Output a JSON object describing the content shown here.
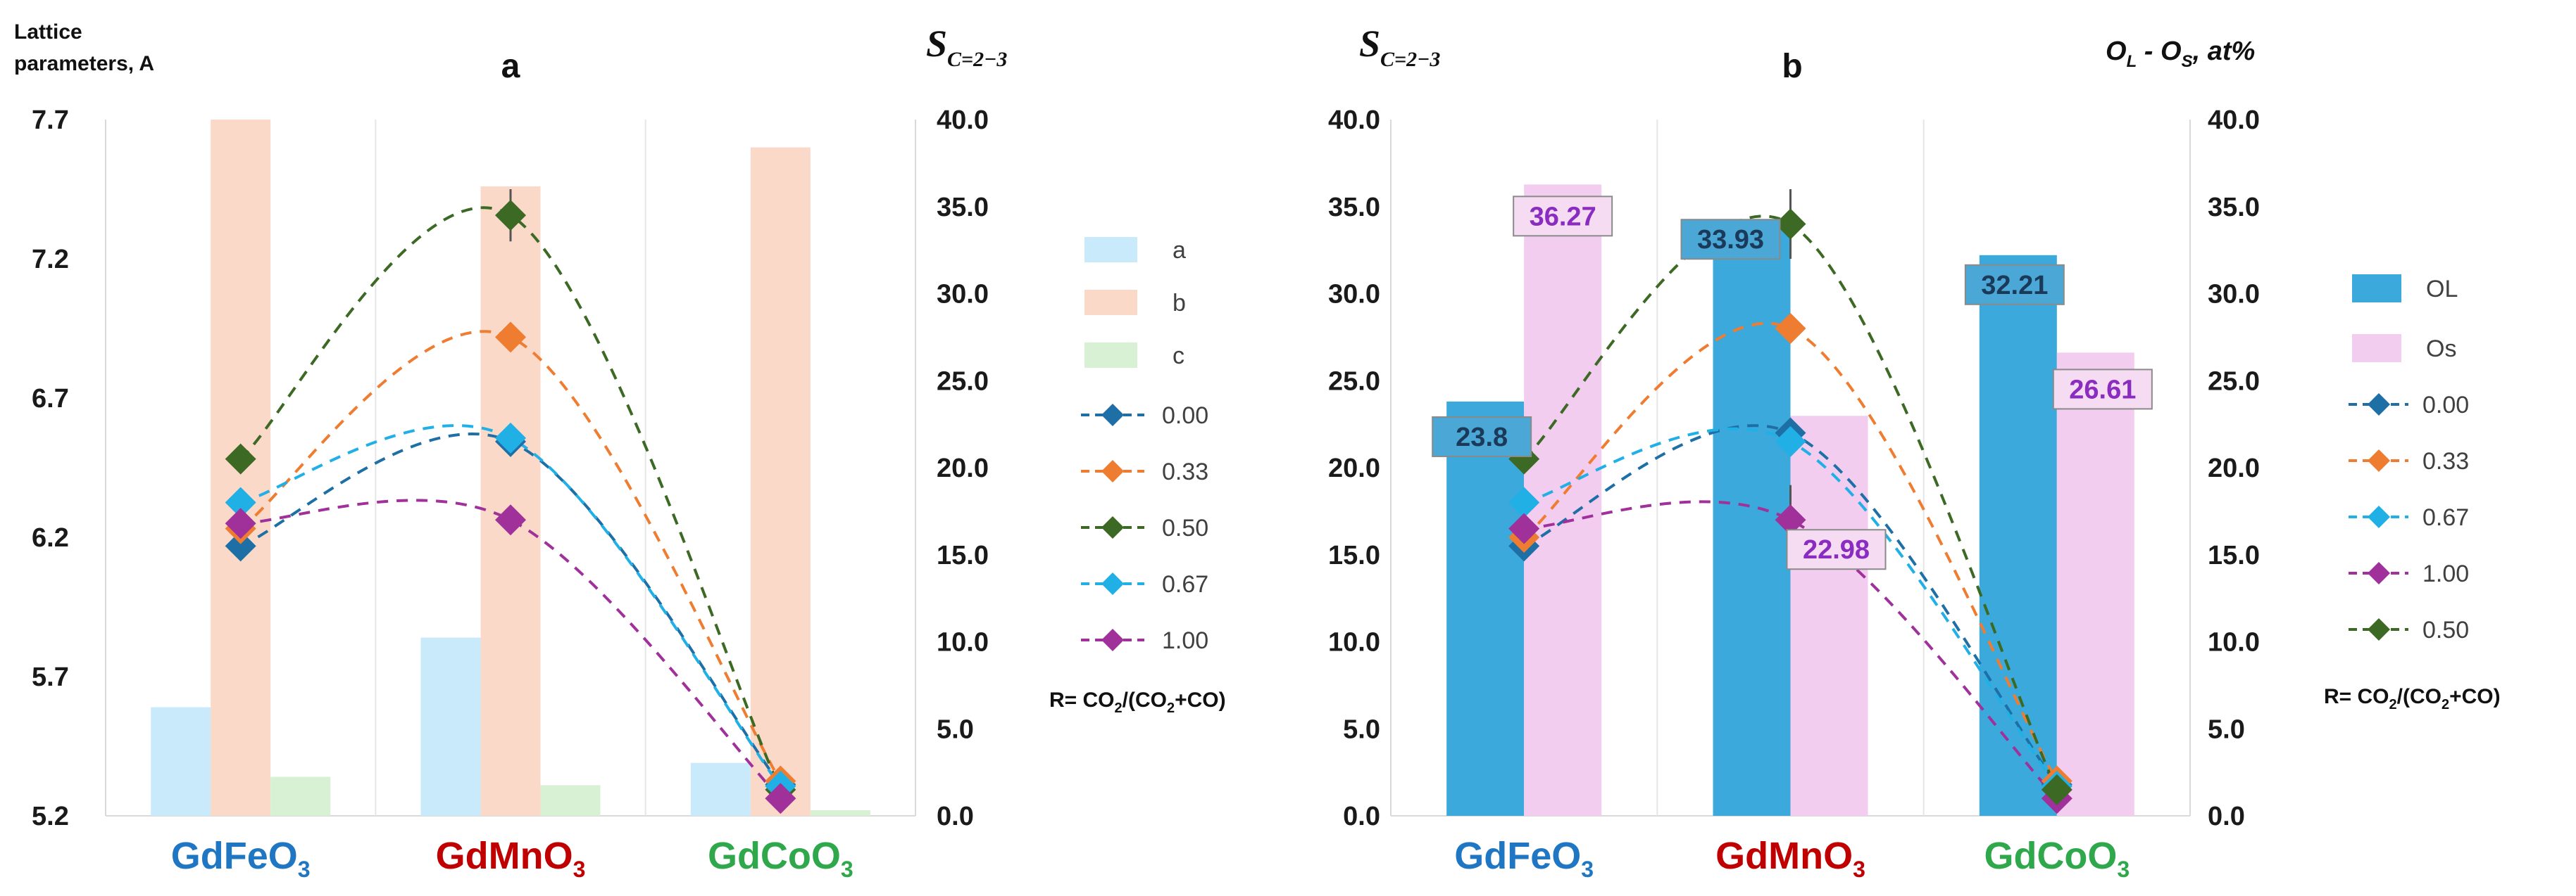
{
  "chart_data": [
    {
      "panel": "a",
      "type": "bar+line",
      "title": "a",
      "left_axis_label_line1": "Lattice",
      "left_axis_label_line2": "parameters, A",
      "right_axis_label": "S",
      "right_axis_label_sub": "C=2−3",
      "categories": [
        "GdFeO",
        "GdMnO",
        "GdCoO"
      ],
      "category_subscript": "3",
      "category_colors": [
        "#1f77c4",
        "#c00000",
        "#2ea84b"
      ],
      "left_ylim": [
        5.2,
        7.7
      ],
      "left_ticks": [
        "7.7",
        "7.2",
        "6.7",
        "6.2",
        "5.7",
        "5.2"
      ],
      "left_tick_values": [
        7.7,
        7.2,
        6.7,
        6.2,
        5.7,
        5.2
      ],
      "right_ylim": [
        0,
        40
      ],
      "right_ticks": [
        "40.0",
        "35.0",
        "30.0",
        "25.0",
        "20.0",
        "15.0",
        "10.0",
        "5.0",
        "0.0"
      ],
      "right_tick_values": [
        40,
        35,
        30,
        25,
        20,
        15,
        10,
        5,
        0
      ],
      "bar_series": [
        {
          "name": "a",
          "color": "#c9eafb",
          "values": [
            5.59,
            5.84,
            5.39
          ]
        },
        {
          "name": "b",
          "color": "#fbd9c9",
          "values": [
            7.7,
            7.46,
            7.6
          ]
        },
        {
          "name": "c",
          "color": "#d8f0d3",
          "values": [
            5.34,
            5.31,
            5.22
          ]
        }
      ],
      "line_series": [
        {
          "name": "0.00",
          "color": "#1d6fa5",
          "values": [
            15.5,
            21.5,
            1.8
          ],
          "errors": [
            0,
            0,
            0
          ]
        },
        {
          "name": "0.33",
          "color": "#ef7d31",
          "values": [
            16.5,
            27.5,
            2.0
          ],
          "errors": [
            0,
            0.8,
            0
          ]
        },
        {
          "name": "0.50",
          "color": "#3c6a24",
          "values": [
            20.5,
            34.5,
            1.5
          ],
          "errors": [
            0,
            1.5,
            0
          ]
        },
        {
          "name": "0.67",
          "color": "#21b0e6",
          "values": [
            18.0,
            21.7,
            1.7
          ],
          "errors": [
            0,
            0,
            0
          ]
        },
        {
          "name": "1.00",
          "color": "#a0309a",
          "values": [
            16.8,
            17.0,
            1.0
          ],
          "errors": [
            0,
            0.8,
            0
          ]
        }
      ],
      "legend_bar_names": [
        "a",
        "b",
        "c"
      ],
      "legend_line_names": [
        "0.00",
        "0.33",
        "0.50",
        "0.67",
        "1.00"
      ],
      "ratio_label": "R= CO",
      "ratio_label_sub1": "2",
      "ratio_label_mid": "/(CO",
      "ratio_label_sub2": "2",
      "ratio_label_end": "+CO)"
    },
    {
      "panel": "b",
      "type": "bar+line",
      "title": "b",
      "left_axis_label": "S",
      "left_axis_label_sub": "C=2−3",
      "right_axis_label_O1": "O",
      "right_axis_label_sub1": "L",
      "right_axis_label_mid": " - O",
      "right_axis_label_sub2": "S",
      "right_axis_label_end": ", at%",
      "categories": [
        "GdFeO",
        "GdMnO",
        "GdCoO"
      ],
      "category_subscript": "3",
      "category_colors": [
        "#1f77c4",
        "#c00000",
        "#2ea84b"
      ],
      "left_ylim": [
        0,
        40
      ],
      "left_ticks": [
        "40.0",
        "35.0",
        "30.0",
        "25.0",
        "20.0",
        "15.0",
        "10.0",
        "5.0",
        "0.0"
      ],
      "left_tick_values": [
        40,
        35,
        30,
        25,
        20,
        15,
        10,
        5,
        0
      ],
      "right_ylim": [
        0,
        40
      ],
      "right_ticks": [
        "40.0",
        "35.0",
        "30.0",
        "25.0",
        "20.0",
        "15.0",
        "10.0",
        "5.0",
        "0.0"
      ],
      "right_tick_values": [
        40,
        35,
        30,
        25,
        20,
        15,
        10,
        5,
        0
      ],
      "bar_series": [
        {
          "name": "OL",
          "color": "#3ba9dc",
          "values": [
            23.8,
            33.93,
            32.21
          ],
          "labels": [
            "23.8",
            "33.93",
            "32.21"
          ],
          "label_color": "#1b3a5a"
        },
        {
          "name": "Os",
          "color": "#f2cdef",
          "values": [
            36.27,
            22.98,
            26.61
          ],
          "labels": [
            "36.27",
            "22.98",
            "26.61"
          ],
          "label_color": "#8a2cc0"
        }
      ],
      "line_series": [
        {
          "name": "0.00",
          "color": "#1d6fa5",
          "values": [
            15.5,
            22.0,
            1.8
          ],
          "errors": [
            0,
            0,
            0
          ]
        },
        {
          "name": "0.33",
          "color": "#ef7d31",
          "values": [
            16.0,
            28.0,
            2.0
          ],
          "errors": [
            0,
            0,
            0
          ]
        },
        {
          "name": "0.67",
          "color": "#21b0e6",
          "values": [
            18.0,
            21.5,
            1.7
          ],
          "errors": [
            0,
            0,
            0
          ]
        },
        {
          "name": "1.00",
          "color": "#a0309a",
          "values": [
            16.5,
            17.0,
            1.0
          ],
          "errors": [
            0,
            2.0,
            0
          ]
        },
        {
          "name": "0.50",
          "color": "#3c6a24",
          "values": [
            20.5,
            34.0,
            1.5
          ],
          "errors": [
            0,
            2.0,
            0
          ]
        }
      ],
      "legend_bar_names": [
        "OL",
        "Os"
      ],
      "legend_line_names": [
        "0.00",
        "0.33",
        "0.67",
        "1.00",
        "0.50"
      ],
      "ratio_label": "R= CO",
      "ratio_label_sub1": "2",
      "ratio_label_mid": "/(CO",
      "ratio_label_sub2": "2",
      "ratio_label_end": "+CO)"
    }
  ]
}
